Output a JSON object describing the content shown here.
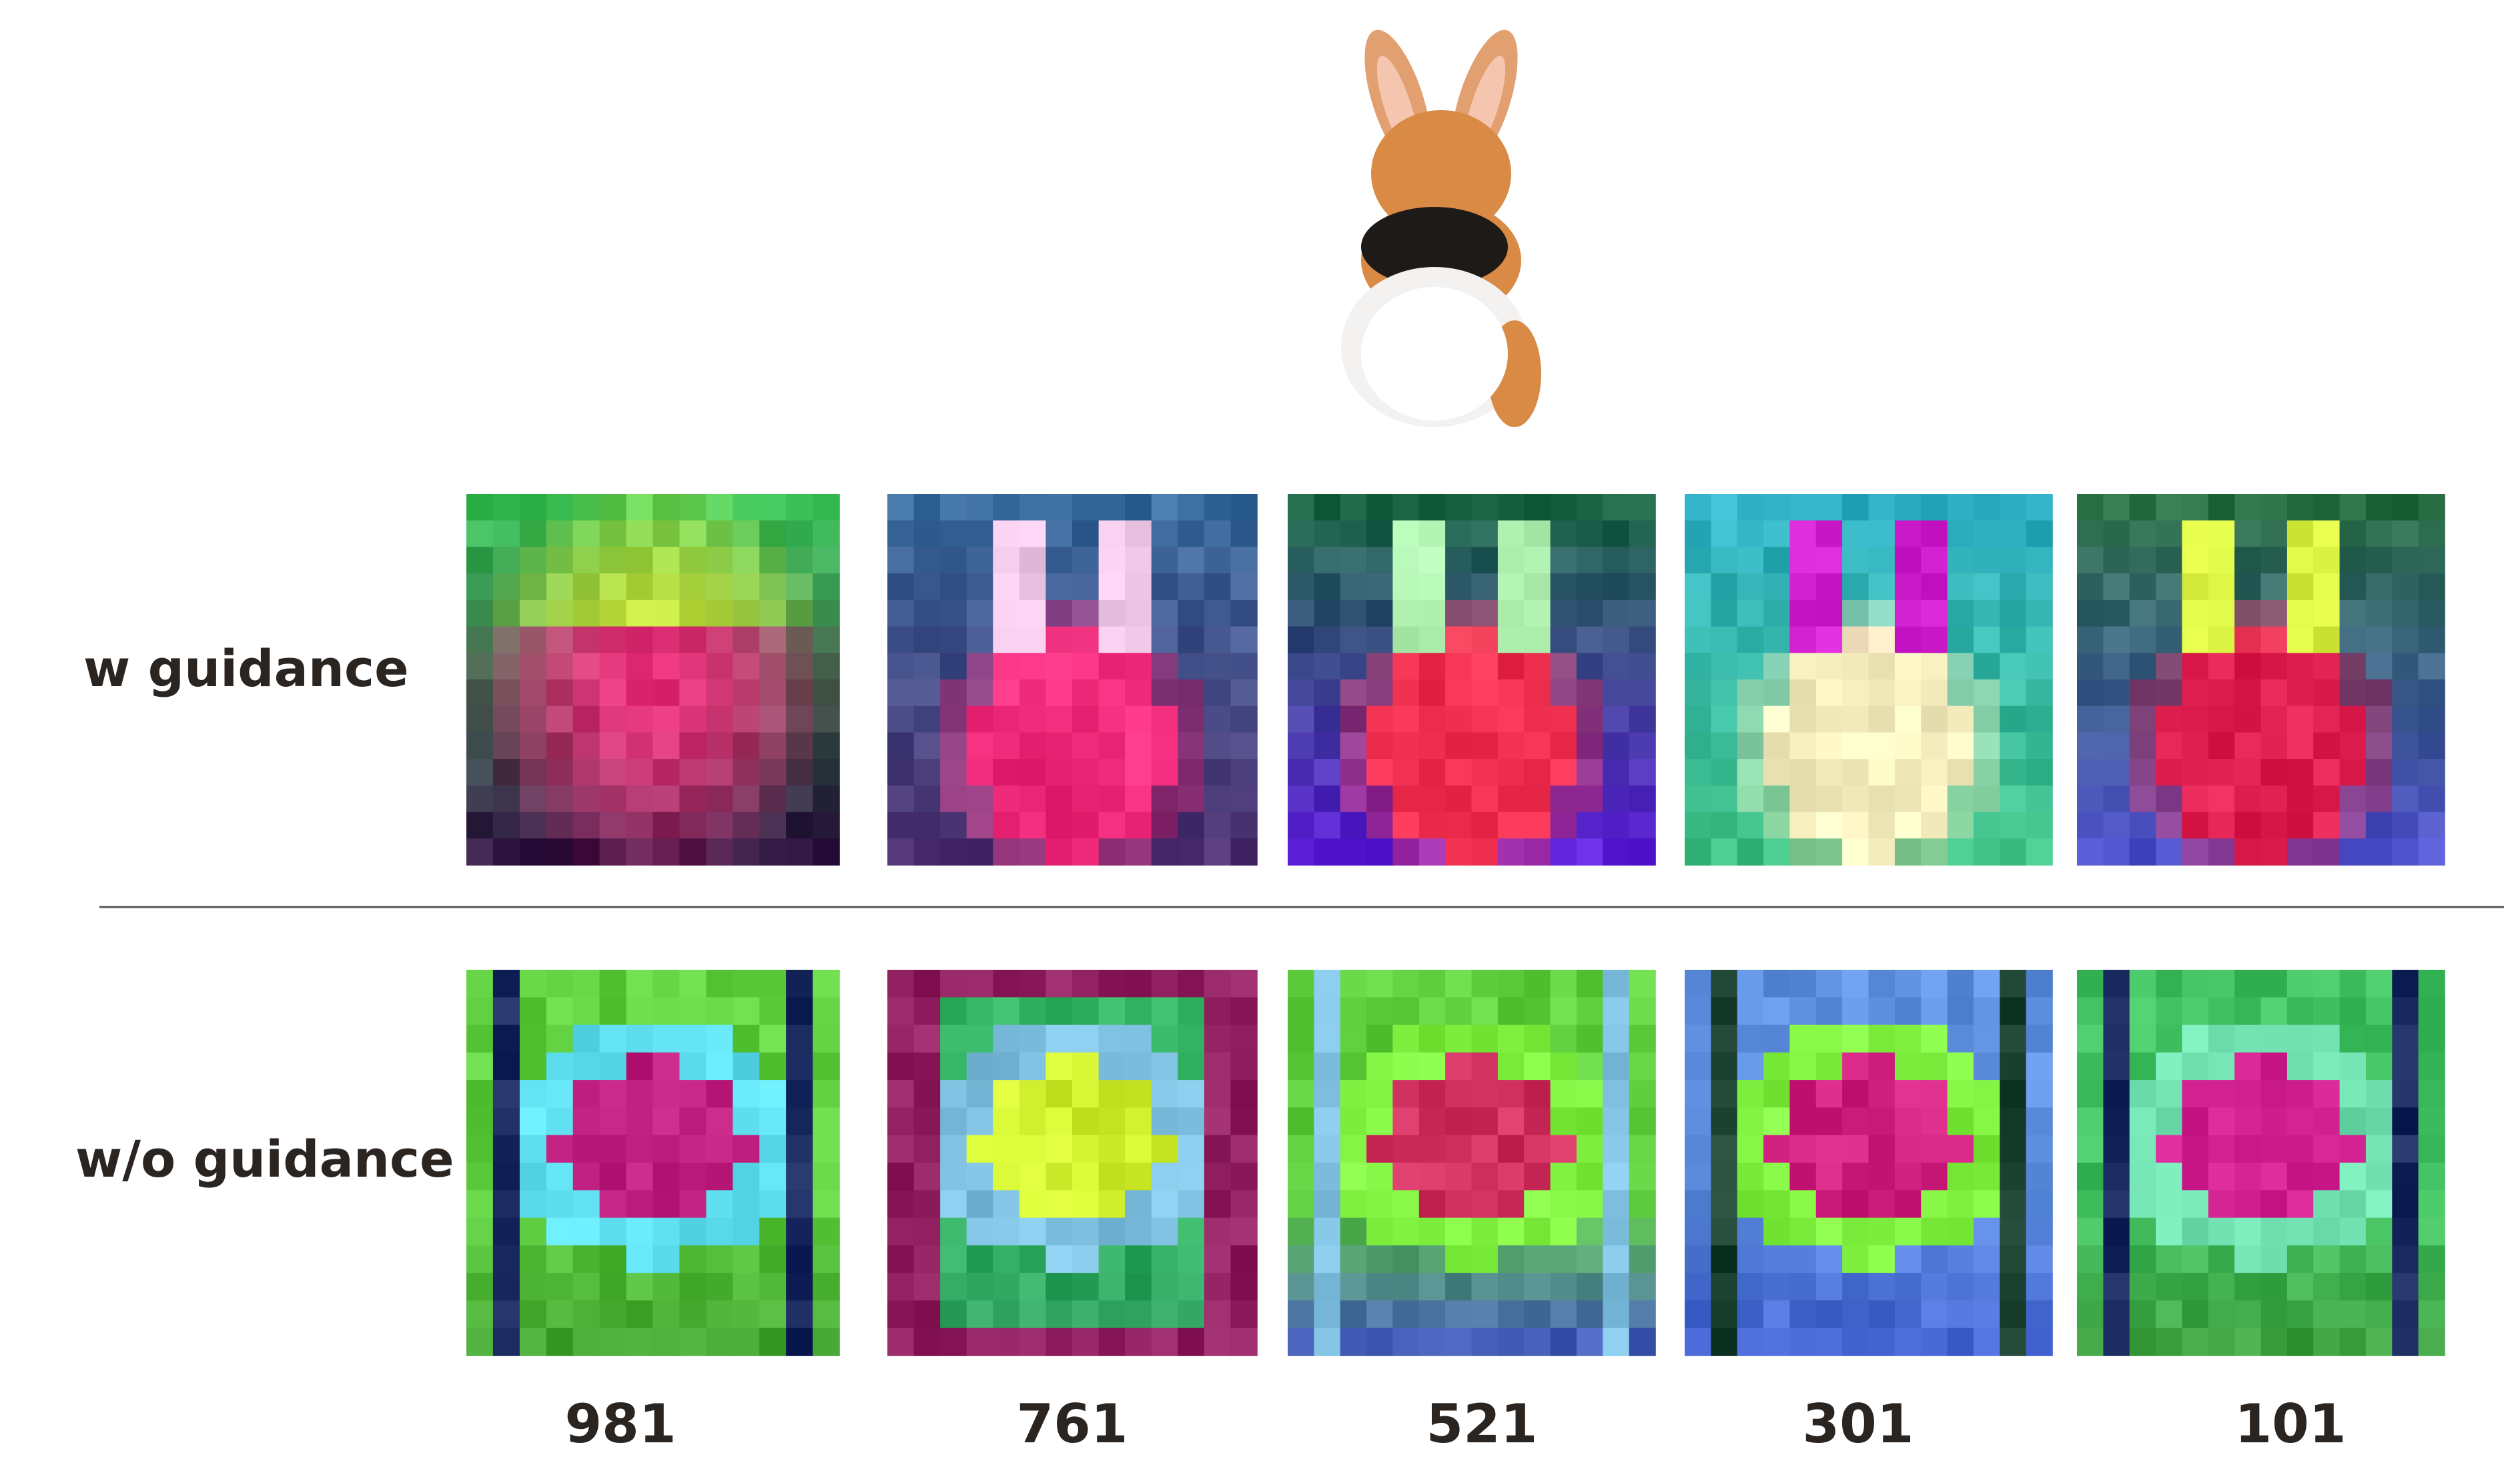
{
  "rows": [
    {
      "label": "w guidance"
    },
    {
      "label": "w/o guidance"
    }
  ],
  "steps": [
    981,
    761,
    521,
    301,
    101
  ]
}
